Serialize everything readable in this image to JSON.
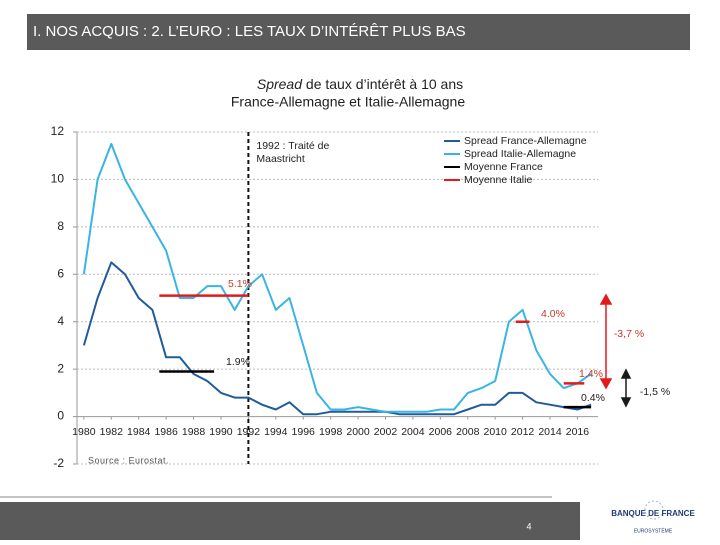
{
  "header": {
    "title": "I. NOS ACQUIS : 2. L’EURO : LES TAUX D’INTÉRÊT PLUS BAS"
  },
  "chart_data": {
    "type": "line",
    "title_italic": "Spread",
    "title": " de taux d’intérêt à 10 ans",
    "subtitle": "France-Allemagne et Italie-Allemagne",
    "source": "Source : Eurostat.",
    "event_label": [
      "1992 : Traité de",
      "Maastricht"
    ],
    "event_x": 1992,
    "xlim": [
      1979.5,
      2017.5
    ],
    "xticks": [
      1980,
      1982,
      1984,
      1986,
      1988,
      1990,
      1992,
      1994,
      1996,
      1998,
      2000,
      2002,
      2004,
      2006,
      2008,
      2010,
      2012,
      2014,
      2016
    ],
    "ylim": [
      -2,
      12
    ],
    "yticks": [
      -2,
      0,
      2,
      4,
      6,
      8,
      10,
      12
    ],
    "grid": true,
    "legend": "top-right",
    "series": [
      {
        "name": "Spread France-Allemagne",
        "color": "#1f5c99",
        "x": [
          1980,
          1981,
          1982,
          1983,
          1984,
          1985,
          1986,
          1987,
          1988,
          1989,
          1990,
          1991,
          1992,
          1993,
          1994,
          1995,
          1996,
          1997,
          1998,
          1999,
          2000,
          2001,
          2002,
          2003,
          2004,
          2005,
          2006,
          2007,
          2008,
          2009,
          2010,
          2011,
          2012,
          2013,
          2014,
          2015,
          2016,
          2017
        ],
        "values": [
          3,
          5,
          6.5,
          6,
          5,
          4.5,
          2.5,
          2.5,
          1.8,
          1.5,
          1,
          0.8,
          0.8,
          0.5,
          0.3,
          0.6,
          0.1,
          0.1,
          0.2,
          0.2,
          0.2,
          0.2,
          0.2,
          0.1,
          0.1,
          0.1,
          0.1,
          0.1,
          0.3,
          0.5,
          0.5,
          1,
          1,
          0.6,
          0.5,
          0.4,
          0.3,
          0.5
        ]
      },
      {
        "name": "Spread Italie-Allemagne",
        "color": "#3ab4e6",
        "x": [
          1980,
          1981,
          1982,
          1983,
          1984,
          1985,
          1986,
          1987,
          1988,
          1989,
          1990,
          1991,
          1992,
          1993,
          1994,
          1995,
          1996,
          1997,
          1998,
          1999,
          2000,
          2001,
          2002,
          2003,
          2004,
          2005,
          2006,
          2007,
          2008,
          2009,
          2010,
          2011,
          2012,
          2013,
          2014,
          2015,
          2016,
          2017
        ],
        "values": [
          6,
          10,
          11.5,
          10,
          9,
          8,
          7,
          5,
          5,
          5.5,
          5.5,
          4.5,
          5.5,
          6,
          4.5,
          5,
          3,
          1,
          0.3,
          0.3,
          0.4,
          0.3,
          0.2,
          0.2,
          0.2,
          0.2,
          0.3,
          0.3,
          1,
          1.2,
          1.5,
          4,
          4.5,
          2.8,
          1.8,
          1.2,
          1.4,
          1.8
        ]
      },
      {
        "name": "Moyenne France",
        "color": "#000000",
        "x": [
          1985.5,
          1989.5,
          null,
          2015,
          2017
        ],
        "values": [
          1.9,
          1.9,
          null,
          0.4,
          0.4
        ]
      },
      {
        "name": "Moyenne Italie",
        "color": "#e31a1c",
        "x": [
          1985.5,
          1992,
          null,
          2011.5,
          2012.5,
          null,
          2015,
          2016.5
        ],
        "values": [
          5.1,
          5.1,
          null,
          4.0,
          4.0,
          null,
          1.4,
          1.4
        ]
      }
    ],
    "annotations": [
      "5.1%",
      "1.9%",
      "4.0%",
      "1.4%",
      "0.4%",
      "-3,7 %",
      "-1,5 %"
    ]
  },
  "footer": {
    "page": "4",
    "logo": "BANQUE DE FRANCE",
    "logo_sub": "EUROSYSTÈME"
  }
}
